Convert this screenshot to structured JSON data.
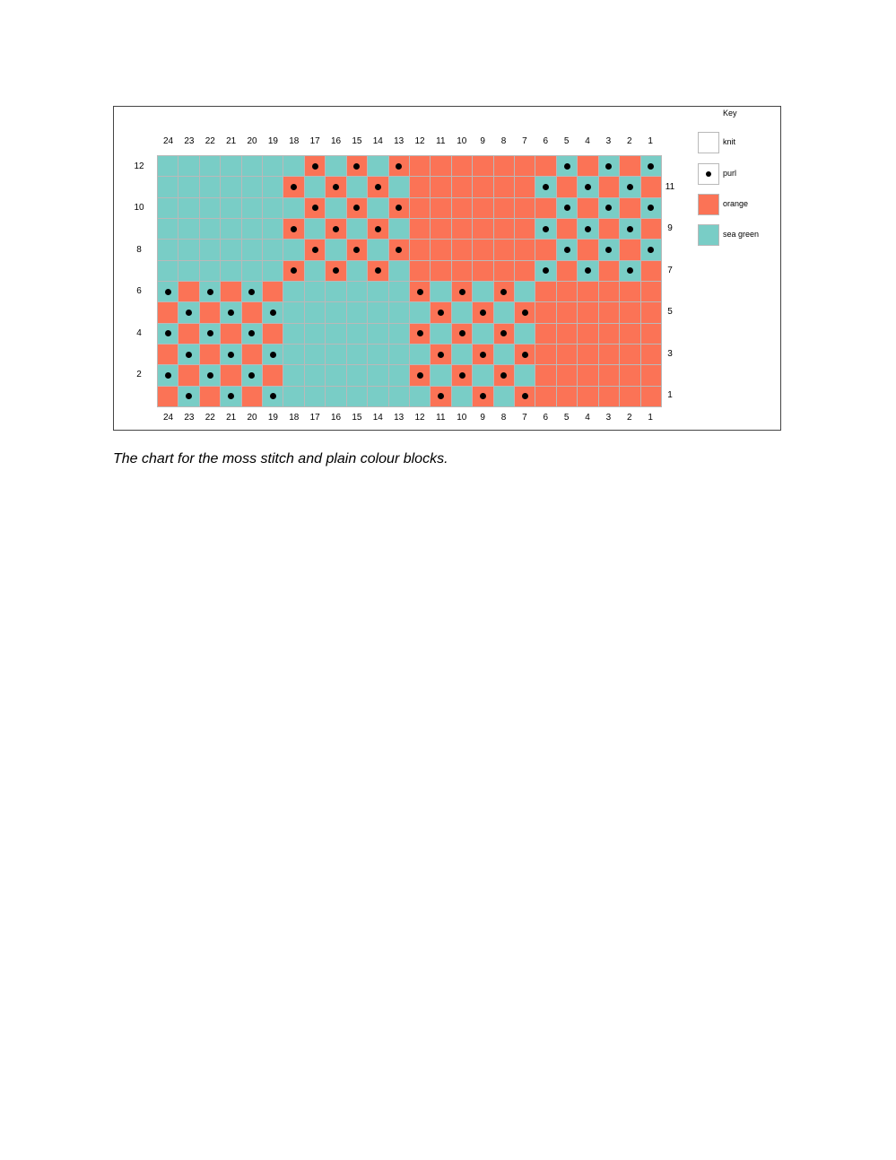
{
  "chart": {
    "columns": [
      "24",
      "23",
      "22",
      "21",
      "20",
      "19",
      "18",
      "17",
      "16",
      "15",
      "14",
      "13",
      "12",
      "11",
      "10",
      "9",
      "8",
      "7",
      "6",
      "5",
      "4",
      "3",
      "2",
      "1"
    ],
    "left_row_labels": [
      "12",
      "10",
      "8",
      "6",
      "4",
      "2"
    ],
    "right_row_labels": [
      "11",
      "9",
      "7",
      "5",
      "3",
      "1"
    ],
    "colors": {
      "O": "#fb7356",
      "G": "#79cdc6",
      "knit": "#ffffff"
    },
    "rows": [
      {
        "row": "12",
        "cells": "GGGGGGGOGOGOOOOOOOOGOGOG",
        "purls": "000000010101000000010101"
      },
      {
        "row": "11",
        "cells": "GGGGGGOGOGOGOOOOOOGOGOGO",
        "purls": "000000101010000000101010"
      },
      {
        "row": "10",
        "cells": "GGGGGGGOGOGOOOOOOOOGOGOG",
        "purls": "000000010101000000010101"
      },
      {
        "row": "9",
        "cells": "GGGGGGOGOGOGOOOOOOGOGOGO",
        "purls": "000000101010000000101010"
      },
      {
        "row": "8",
        "cells": "GGGGGGGOGOGOOOOOOOOGOGOG",
        "purls": "000000010101000000010101"
      },
      {
        "row": "7",
        "cells": "GGGGGGOGOGOGOOOOOOGOGOGO",
        "purls": "000000101010000000101010"
      },
      {
        "row": "6",
        "cells": "GOGOGOGGGGGGOGOGOGOOOOOO",
        "purls": "101010000000101010000000"
      },
      {
        "row": "5",
        "cells": "OGOGOGGGGGGGGOGOGOOOOOOO",
        "purls": "010101000000010101000000"
      },
      {
        "row": "4",
        "cells": "GOGOGOGGGGGGOGOGOGOOOOOO",
        "purls": "101010000000101010000000"
      },
      {
        "row": "3",
        "cells": "OGOGOGGGGGGGGOGOGOOOOOOO",
        "purls": "010101000000010101000000"
      },
      {
        "row": "2",
        "cells": "GOGOGOGGGGGGOGOGOGOOOOOO",
        "purls": "101010000000101010000000"
      },
      {
        "row": "1",
        "cells": "OGOGOGGGGGGGGOGOGOOOOOOO",
        "purls": "010101000000010101000000"
      }
    ]
  },
  "key": {
    "title": "Key",
    "items": [
      {
        "label": "knit",
        "color": "#ffffff",
        "purl": false
      },
      {
        "label": "purl",
        "color": "#ffffff",
        "purl": true
      },
      {
        "label": "orange",
        "color": "#fb7356",
        "purl": false
      },
      {
        "label": "sea green",
        "color": "#79cdc6",
        "purl": false
      }
    ]
  },
  "caption": "The chart for the moss stitch and plain colour blocks."
}
